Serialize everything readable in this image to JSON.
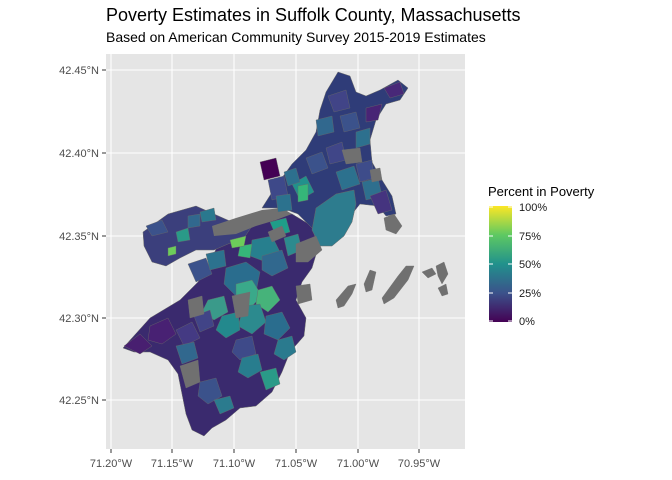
{
  "title": "Poverty Estimates in Suffolk County, Massachusetts",
  "subtitle": "Based on American Community Survey 2015-2019 Estimates",
  "chart_data": {
    "type": "choropleth map",
    "y_ticks": [
      "42.45°N",
      "42.40°N",
      "42.35°N",
      "42.30°N",
      "42.25°N"
    ],
    "x_ticks": [
      "71.20°W",
      "71.15°W",
      "71.10°W",
      "71.05°W",
      "71.00°W",
      "70.95°W"
    ],
    "legend": {
      "title": "Percent in Poverty",
      "labels": [
        "100%",
        "75%",
        "50%",
        "25%",
        "0%"
      ],
      "colors": [
        "#fde725",
        "#5ec962",
        "#21918c",
        "#3b528b",
        "#440154"
      ]
    },
    "missing_color": "#707070",
    "panel_color": "#e5e5e5",
    "grid_color": "#ffffff"
  }
}
